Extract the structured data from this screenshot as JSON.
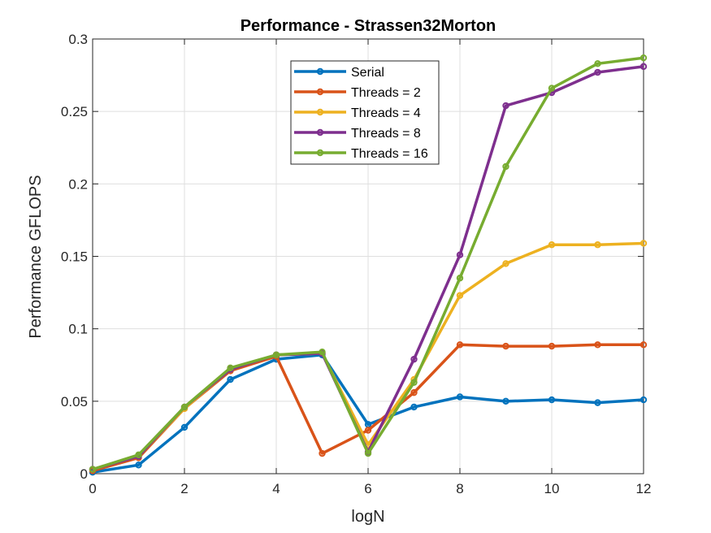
{
  "chart_data": {
    "type": "line",
    "title": "Performance - Strassen32Morton",
    "xlabel": "logN",
    "ylabel": "Performance GFLOPS",
    "xlim": [
      0,
      12
    ],
    "ylim": [
      0,
      0.3
    ],
    "xticks": [
      0,
      2,
      4,
      6,
      8,
      10,
      12
    ],
    "xtick_labels": [
      "0",
      "2",
      "4",
      "6",
      "8",
      "10",
      "12"
    ],
    "yticks": [
      0,
      0.05,
      0.1,
      0.15,
      0.2,
      0.25,
      0.3
    ],
    "ytick_labels": [
      "0",
      "0.05",
      "0.1",
      "0.15",
      "0.2",
      "0.25",
      "0.3"
    ],
    "grid": true,
    "legend_position": "top-center",
    "x": [
      0,
      1,
      2,
      3,
      4,
      5,
      6,
      7,
      8,
      9,
      10,
      11,
      12
    ],
    "series": [
      {
        "name": "Serial",
        "color": "#0072BD",
        "values": [
          0.001,
          0.006,
          0.032,
          0.065,
          0.079,
          0.082,
          0.034,
          0.046,
          0.053,
          0.05,
          0.051,
          0.049,
          0.051
        ]
      },
      {
        "name": "Threads = 2",
        "color": "#D95319",
        "values": [
          0.002,
          0.011,
          0.045,
          0.071,
          0.081,
          0.014,
          0.03,
          0.056,
          0.089,
          0.088,
          0.088,
          0.089,
          0.089
        ]
      },
      {
        "name": "Threads = 4",
        "color": "#EDB120",
        "values": [
          0.003,
          0.012,
          0.045,
          0.072,
          0.082,
          0.083,
          0.02,
          0.065,
          0.123,
          0.145,
          0.158,
          0.158,
          0.159
        ]
      },
      {
        "name": "Threads = 8",
        "color": "#7E2F8E",
        "values": [
          0.003,
          0.012,
          0.046,
          0.072,
          0.082,
          0.083,
          0.015,
          0.079,
          0.151,
          0.254,
          0.263,
          0.277,
          0.281
        ]
      },
      {
        "name": "Threads = 16",
        "color": "#77AC30",
        "values": [
          0.003,
          0.013,
          0.046,
          0.073,
          0.082,
          0.084,
          0.014,
          0.063,
          0.135,
          0.212,
          0.266,
          0.283,
          0.287
        ]
      }
    ]
  }
}
